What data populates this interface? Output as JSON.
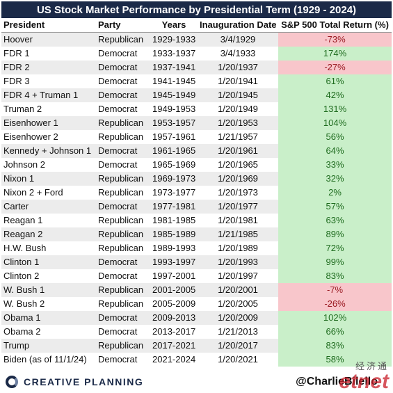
{
  "title": "US Stock Market Performance by Presidential Term (1929 - 2024)",
  "headers": {
    "president": "President",
    "party": "Party",
    "years": "Years",
    "inauguration": "Inauguration Date",
    "return": "S&P 500 Total Return (%)"
  },
  "colors": {
    "header_bg": "#1b2a48",
    "positive_bg": "#c9efc9",
    "positive_text": "#1e6b1e",
    "negative_bg": "#f8c6cb",
    "negative_text": "#9a1a22"
  },
  "rows": [
    {
      "president": "Hoover",
      "party": "Republican",
      "years": "1929-1933",
      "date": "3/4/1929",
      "ret": "-73%",
      "sign": "neg"
    },
    {
      "president": "FDR 1",
      "party": "Democrat",
      "years": "1933-1937",
      "date": "3/4/1933",
      "ret": "174%",
      "sign": "pos"
    },
    {
      "president": "FDR 2",
      "party": "Democrat",
      "years": "1937-1941",
      "date": "1/20/1937",
      "ret": "-27%",
      "sign": "neg"
    },
    {
      "president": "FDR 3",
      "party": "Democrat",
      "years": "1941-1945",
      "date": "1/20/1941",
      "ret": "61%",
      "sign": "pos"
    },
    {
      "president": "FDR 4 + Truman 1",
      "party": "Democrat",
      "years": "1945-1949",
      "date": "1/20/1945",
      "ret": "42%",
      "sign": "pos"
    },
    {
      "president": "Truman 2",
      "party": "Democrat",
      "years": "1949-1953",
      "date": "1/20/1949",
      "ret": "131%",
      "sign": "pos"
    },
    {
      "president": "Eisenhower 1",
      "party": "Republican",
      "years": "1953-1957",
      "date": "1/20/1953",
      "ret": "104%",
      "sign": "pos"
    },
    {
      "president": "Eisenhower 2",
      "party": "Republican",
      "years": "1957-1961",
      "date": "1/21/1957",
      "ret": "56%",
      "sign": "pos"
    },
    {
      "president": "Kennedy + Johnson 1",
      "party": "Democrat",
      "years": "1961-1965",
      "date": "1/20/1961",
      "ret": "64%",
      "sign": "pos"
    },
    {
      "president": "Johnson 2",
      "party": "Democrat",
      "years": "1965-1969",
      "date": "1/20/1965",
      "ret": "33%",
      "sign": "pos"
    },
    {
      "president": "Nixon 1",
      "party": "Republican",
      "years": "1969-1973",
      "date": "1/20/1969",
      "ret": "32%",
      "sign": "pos"
    },
    {
      "president": "Nixon 2 + Ford",
      "party": "Republican",
      "years": "1973-1977",
      "date": "1/20/1973",
      "ret": "2%",
      "sign": "pos"
    },
    {
      "president": "Carter",
      "party": "Democrat",
      "years": "1977-1981",
      "date": "1/20/1977",
      "ret": "57%",
      "sign": "pos"
    },
    {
      "president": "Reagan 1",
      "party": "Republican",
      "years": "1981-1985",
      "date": "1/20/1981",
      "ret": "63%",
      "sign": "pos"
    },
    {
      "president": "Reagan 2",
      "party": "Republican",
      "years": "1985-1989",
      "date": "1/21/1985",
      "ret": "89%",
      "sign": "pos"
    },
    {
      "president": "H.W. Bush",
      "party": "Republican",
      "years": "1989-1993",
      "date": "1/20/1989",
      "ret": "72%",
      "sign": "pos"
    },
    {
      "president": "Clinton 1",
      "party": "Democrat",
      "years": "1993-1997",
      "date": "1/20/1993",
      "ret": "99%",
      "sign": "pos"
    },
    {
      "president": "Clinton 2",
      "party": "Democrat",
      "years": "1997-2001",
      "date": "1/20/1997",
      "ret": "83%",
      "sign": "pos"
    },
    {
      "president": "W. Bush 1",
      "party": "Republican",
      "years": "2001-2005",
      "date": "1/20/2001",
      "ret": "-7%",
      "sign": "neg"
    },
    {
      "president": "W. Bush 2",
      "party": "Republican",
      "years": "2005-2009",
      "date": "1/20/2005",
      "ret": "-26%",
      "sign": "neg"
    },
    {
      "president": "Obama 1",
      "party": "Democrat",
      "years": "2009-2013",
      "date": "1/20/2009",
      "ret": "102%",
      "sign": "pos"
    },
    {
      "president": "Obama 2",
      "party": "Democrat",
      "years": "2013-2017",
      "date": "1/21/2013",
      "ret": "66%",
      "sign": "pos"
    },
    {
      "president": "Trump",
      "party": "Republican",
      "years": "2017-2021",
      "date": "1/20/2017",
      "ret": "83%",
      "sign": "pos"
    },
    {
      "president": "Biden (as of 11/1/24)",
      "party": "Democrat",
      "years": "2021-2024",
      "date": "1/20/2021",
      "ret": "58%",
      "sign": "pos"
    }
  ],
  "footer": {
    "logo_text": "CREATIVE PLANNING",
    "logo_icon": "creative-planning-logo-icon",
    "handle": "@CharlieBilello"
  },
  "watermark": {
    "cn": "经济通",
    "en": "etnet"
  }
}
